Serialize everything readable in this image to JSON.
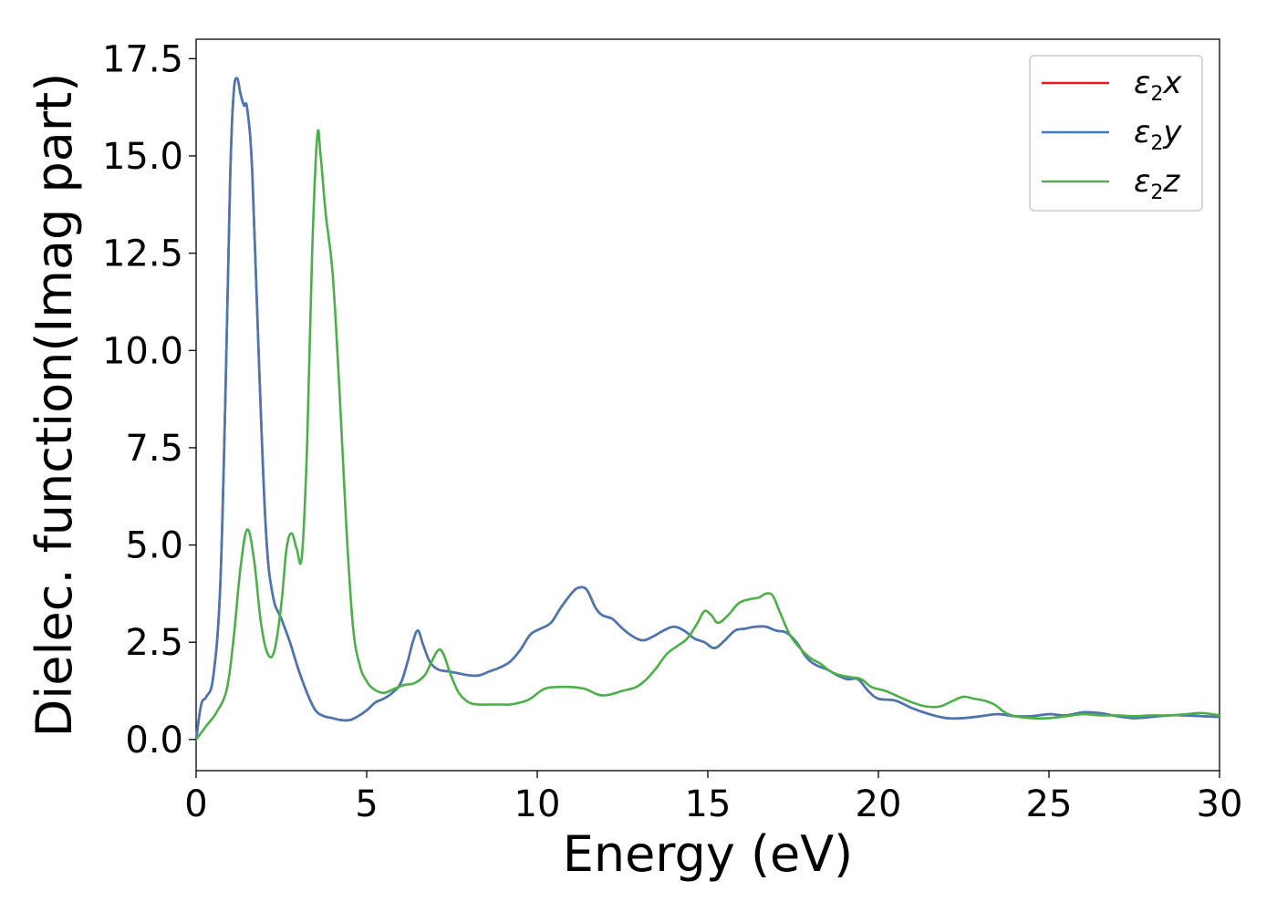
{
  "chart_data": {
    "type": "line",
    "title": "",
    "xlabel": "Energy (eV)",
    "ylabel": "Dielec. function(Imag part)",
    "xlim": [
      0,
      30
    ],
    "ylim": [
      -0.8,
      18.0
    ],
    "xticks": [
      0,
      5,
      10,
      15,
      20,
      25,
      30
    ],
    "xtick_labels": [
      "0",
      "5",
      "10",
      "15",
      "20",
      "25",
      "30"
    ],
    "yticks": [
      0.0,
      2.5,
      5.0,
      7.5,
      10.0,
      12.5,
      15.0,
      17.5
    ],
    "ytick_labels": [
      "0.0",
      "2.5",
      "5.0",
      "7.5",
      "10.0",
      "12.5",
      "15.0",
      "17.5"
    ],
    "grid": false,
    "legend_position": "top-right",
    "series": [
      {
        "name": "ε2x",
        "legend_base": "ε",
        "legend_sub": "2",
        "legend_suffix": "x",
        "color": "#e41a1c",
        "x": [
          0,
          0.15,
          0.3,
          0.5,
          0.7,
          0.85,
          1.0,
          1.1,
          1.2,
          1.3,
          1.4,
          1.5,
          1.65,
          1.85,
          2.05,
          2.25,
          2.5,
          2.75,
          3.0,
          3.25,
          3.5,
          3.75,
          4.0,
          4.25,
          4.5,
          4.75,
          5.0,
          5.25,
          5.5,
          5.75,
          6.0,
          6.2,
          6.35,
          6.5,
          6.65,
          6.85,
          7.1,
          7.4,
          7.7,
          8.0,
          8.3,
          8.6,
          8.9,
          9.2,
          9.5,
          9.8,
          10.1,
          10.4,
          10.7,
          11.0,
          11.2,
          11.45,
          11.7,
          11.9,
          12.2,
          12.5,
          12.8,
          13.1,
          13.4,
          13.7,
          14.0,
          14.3,
          14.6,
          14.9,
          15.2,
          15.5,
          15.8,
          16.1,
          16.4,
          16.7,
          17.0,
          17.3,
          17.6,
          17.9,
          18.2,
          18.5,
          18.8,
          19.1,
          19.4,
          19.7,
          20.0,
          20.5,
          21.0,
          21.5,
          22.0,
          22.5,
          23.0,
          23.5,
          24.0,
          24.5,
          25.0,
          25.5,
          26.0,
          26.5,
          27.0,
          27.5,
          28.0,
          28.5,
          29.0,
          29.5,
          30.0
        ],
        "y": [
          0.0,
          0.9,
          1.1,
          1.6,
          3.8,
          8.5,
          14.5,
          16.6,
          17.0,
          16.6,
          16.3,
          16.2,
          14.5,
          9.5,
          5.3,
          3.7,
          3.1,
          2.5,
          1.8,
          1.2,
          0.75,
          0.6,
          0.55,
          0.5,
          0.5,
          0.6,
          0.75,
          0.95,
          1.05,
          1.2,
          1.45,
          2.0,
          2.5,
          2.8,
          2.45,
          2.0,
          1.8,
          1.75,
          1.7,
          1.65,
          1.65,
          1.75,
          1.85,
          2.0,
          2.3,
          2.7,
          2.85,
          3.0,
          3.4,
          3.75,
          3.9,
          3.85,
          3.4,
          3.2,
          3.1,
          2.85,
          2.65,
          2.55,
          2.65,
          2.8,
          2.9,
          2.8,
          2.6,
          2.5,
          2.35,
          2.55,
          2.8,
          2.85,
          2.9,
          2.9,
          2.8,
          2.75,
          2.5,
          2.1,
          1.9,
          1.8,
          1.65,
          1.55,
          1.55,
          1.25,
          1.05,
          1.0,
          0.8,
          0.65,
          0.55,
          0.55,
          0.6,
          0.65,
          0.6,
          0.6,
          0.65,
          0.62,
          0.7,
          0.68,
          0.6,
          0.55,
          0.58,
          0.62,
          0.62,
          0.6,
          0.58
        ]
      },
      {
        "name": "ε2y",
        "legend_base": "ε",
        "legend_sub": "2",
        "legend_suffix": "y",
        "color": "#4878b4",
        "x": [
          0,
          0.15,
          0.3,
          0.5,
          0.7,
          0.85,
          1.0,
          1.1,
          1.2,
          1.3,
          1.4,
          1.5,
          1.65,
          1.85,
          2.05,
          2.25,
          2.5,
          2.75,
          3.0,
          3.25,
          3.5,
          3.75,
          4.0,
          4.25,
          4.5,
          4.75,
          5.0,
          5.25,
          5.5,
          5.75,
          6.0,
          6.2,
          6.35,
          6.5,
          6.65,
          6.85,
          7.1,
          7.4,
          7.7,
          8.0,
          8.3,
          8.6,
          8.9,
          9.2,
          9.5,
          9.8,
          10.1,
          10.4,
          10.7,
          11.0,
          11.2,
          11.45,
          11.7,
          11.9,
          12.2,
          12.5,
          12.8,
          13.1,
          13.4,
          13.7,
          14.0,
          14.3,
          14.6,
          14.9,
          15.2,
          15.5,
          15.8,
          16.1,
          16.4,
          16.7,
          17.0,
          17.3,
          17.6,
          17.9,
          18.2,
          18.5,
          18.8,
          19.1,
          19.4,
          19.7,
          20.0,
          20.5,
          21.0,
          21.5,
          22.0,
          22.5,
          23.0,
          23.5,
          24.0,
          24.5,
          25.0,
          25.5,
          26.0,
          26.5,
          27.0,
          27.5,
          28.0,
          28.5,
          29.0,
          29.5,
          30.0
        ],
        "y": [
          0.0,
          0.9,
          1.1,
          1.6,
          3.8,
          8.5,
          14.5,
          16.6,
          17.0,
          16.6,
          16.3,
          16.2,
          14.5,
          9.5,
          5.3,
          3.7,
          3.1,
          2.5,
          1.8,
          1.2,
          0.75,
          0.6,
          0.55,
          0.5,
          0.5,
          0.6,
          0.75,
          0.95,
          1.05,
          1.2,
          1.45,
          2.0,
          2.5,
          2.8,
          2.45,
          2.0,
          1.8,
          1.75,
          1.7,
          1.65,
          1.65,
          1.75,
          1.85,
          2.0,
          2.3,
          2.7,
          2.85,
          3.0,
          3.4,
          3.75,
          3.9,
          3.85,
          3.4,
          3.2,
          3.1,
          2.85,
          2.65,
          2.55,
          2.65,
          2.8,
          2.9,
          2.8,
          2.6,
          2.5,
          2.35,
          2.55,
          2.8,
          2.85,
          2.9,
          2.9,
          2.8,
          2.75,
          2.5,
          2.1,
          1.9,
          1.8,
          1.65,
          1.55,
          1.55,
          1.25,
          1.05,
          1.0,
          0.8,
          0.65,
          0.55,
          0.55,
          0.6,
          0.65,
          0.6,
          0.6,
          0.65,
          0.62,
          0.7,
          0.68,
          0.6,
          0.55,
          0.58,
          0.62,
          0.62,
          0.6,
          0.58
        ]
      },
      {
        "name": "ε2z",
        "legend_base": "ε",
        "legend_sub": "2",
        "legend_suffix": "z",
        "color": "#4daf4a",
        "x": [
          0,
          0.3,
          0.6,
          0.9,
          1.1,
          1.3,
          1.5,
          1.7,
          1.9,
          2.1,
          2.3,
          2.5,
          2.65,
          2.8,
          2.95,
          3.1,
          3.25,
          3.4,
          3.55,
          3.65,
          3.8,
          4.0,
          4.2,
          4.4,
          4.6,
          4.8,
          5.0,
          5.2,
          5.5,
          5.8,
          6.1,
          6.4,
          6.7,
          6.9,
          7.1,
          7.25,
          7.45,
          7.7,
          8.0,
          8.3,
          8.6,
          8.9,
          9.2,
          9.5,
          9.8,
          10.2,
          10.6,
          11.0,
          11.4,
          11.8,
          12.1,
          12.5,
          12.9,
          13.2,
          13.5,
          13.8,
          14.1,
          14.4,
          14.7,
          14.9,
          15.1,
          15.3,
          15.6,
          15.9,
          16.2,
          16.5,
          16.7,
          16.9,
          17.1,
          17.4,
          17.7,
          18.0,
          18.3,
          18.6,
          18.9,
          19.2,
          19.5,
          19.8,
          20.2,
          20.6,
          21.0,
          21.4,
          21.8,
          22.2,
          22.5,
          22.8,
          23.1,
          23.4,
          23.7,
          24.0,
          24.5,
          25.0,
          25.5,
          26.0,
          26.5,
          27.0,
          27.5,
          28.0,
          28.5,
          29.0,
          29.5,
          30.0
        ],
        "y": [
          0.0,
          0.35,
          0.7,
          1.3,
          2.6,
          4.4,
          5.4,
          4.6,
          3.0,
          2.2,
          2.3,
          3.5,
          4.9,
          5.3,
          4.9,
          4.7,
          7.5,
          12.5,
          15.5,
          15.0,
          13.5,
          12.0,
          9.0,
          5.5,
          2.9,
          1.9,
          1.5,
          1.3,
          1.2,
          1.3,
          1.4,
          1.45,
          1.65,
          2.0,
          2.3,
          2.2,
          1.7,
          1.2,
          0.95,
          0.9,
          0.9,
          0.9,
          0.9,
          0.95,
          1.05,
          1.3,
          1.35,
          1.35,
          1.3,
          1.15,
          1.15,
          1.25,
          1.35,
          1.55,
          1.85,
          2.2,
          2.4,
          2.6,
          3.0,
          3.3,
          3.2,
          3.0,
          3.2,
          3.5,
          3.6,
          3.65,
          3.75,
          3.7,
          3.3,
          2.7,
          2.35,
          2.1,
          1.95,
          1.75,
          1.65,
          1.6,
          1.55,
          1.35,
          1.25,
          1.1,
          0.95,
          0.85,
          0.85,
          1.0,
          1.1,
          1.05,
          1.0,
          0.9,
          0.7,
          0.6,
          0.55,
          0.55,
          0.6,
          0.65,
          0.62,
          0.62,
          0.6,
          0.62,
          0.62,
          0.65,
          0.68,
          0.62
        ]
      }
    ]
  }
}
